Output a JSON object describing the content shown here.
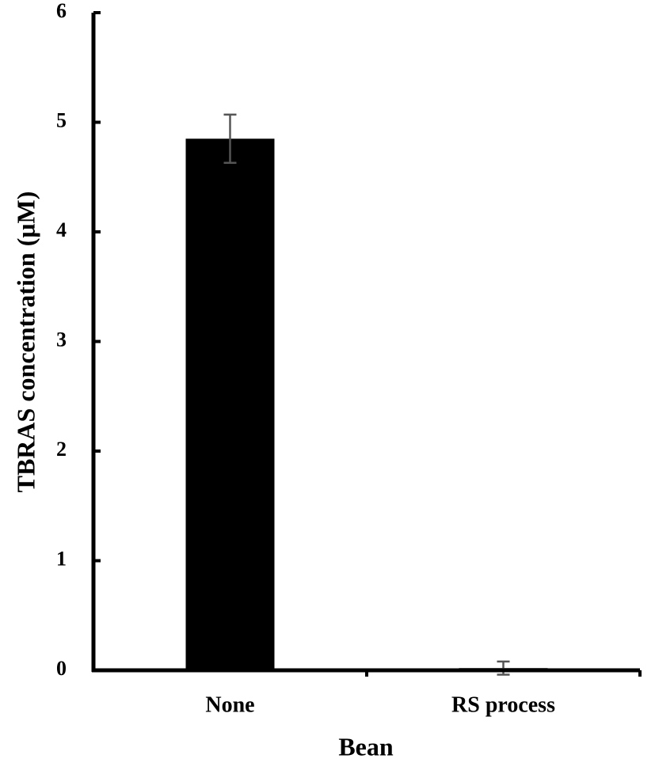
{
  "chart_data": {
    "type": "bar",
    "x_label": "Bean",
    "y_label": "TBRAS concentration (μM)",
    "categories": [
      "None",
      "RS process"
    ],
    "values": [
      4.85,
      0.02
    ],
    "errors": [
      0.22,
      0.06
    ],
    "color": "#000000",
    "error_color": "#555555",
    "ylim": [
      0,
      6
    ],
    "yticks": [
      0,
      1,
      2,
      3,
      4,
      5,
      6
    ]
  }
}
